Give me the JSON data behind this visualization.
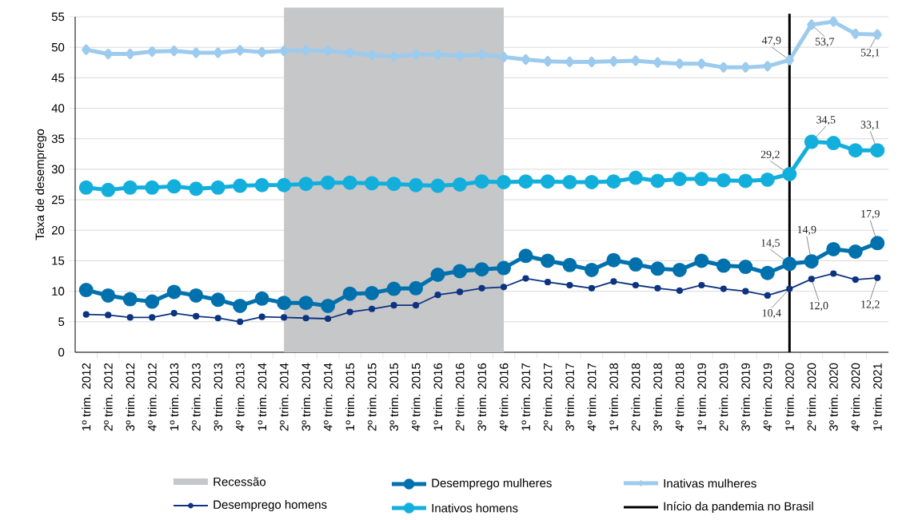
{
  "chart_data": {
    "type": "line",
    "ylabel": "Taxa de desemprego",
    "categories": [
      "1º trim. 2012",
      "2º trim. 2012",
      "3º trim. 2012",
      "4º trim. 2012",
      "1º trim. 2013",
      "2º trim. 2013",
      "3º trim. 2013",
      "4º trim. 2013",
      "1º trim. 2014",
      "2º trim. 2014",
      "3º trim. 2014",
      "4º trim. 2014",
      "1º trim. 2015",
      "2º trim. 2015",
      "3º trim. 2015",
      "4º trim. 2015",
      "1º trim. 2016",
      "2º trim. 2016",
      "3º trim. 2016",
      "4º trim. 2016",
      "1º trim. 2017",
      "2º trim. 2017",
      "3º trim. 2017",
      "4º trim. 2017",
      "1º trim. 2018",
      "2º trim. 2018",
      "3º trim. 2018",
      "4º trim. 2018",
      "1º trim. 2019",
      "2º trim. 2019",
      "3º trim. 2019",
      "4º trim. 2019",
      "1º trim. 2020",
      "2º trim. 2020",
      "3º trim. 2020",
      "4º trim. 2020",
      "1º trim. 2021"
    ],
    "series": [
      {
        "name": "Desemprego homens",
        "color": "#0d3480",
        "marker": "circle",
        "values": [
          6.2,
          6.1,
          5.7,
          5.7,
          6.4,
          5.9,
          5.6,
          5.0,
          5.8,
          5.7,
          5.6,
          5.5,
          6.6,
          7.1,
          7.7,
          7.7,
          9.4,
          9.9,
          10.5,
          10.7,
          12.1,
          11.5,
          11.0,
          10.5,
          11.6,
          11.0,
          10.5,
          10.1,
          11.0,
          10.4,
          10.0,
          9.3,
          10.4,
          12.0,
          12.9,
          11.9,
          12.2
        ]
      },
      {
        "name": "Desemprego mulheres",
        "color": "#0071ad",
        "marker": "circle",
        "values": [
          10.2,
          9.3,
          8.7,
          8.3,
          9.9,
          9.3,
          8.6,
          7.6,
          8.8,
          8.1,
          8.1,
          7.6,
          9.6,
          9.7,
          10.4,
          10.5,
          12.7,
          13.3,
          13.6,
          13.8,
          15.8,
          15.0,
          14.3,
          13.5,
          15.1,
          14.4,
          13.7,
          13.5,
          15.0,
          14.2,
          14.0,
          13.0,
          14.5,
          14.9,
          16.9,
          16.5,
          17.9
        ]
      },
      {
        "name": "Inativos homens",
        "color": "#13afdc",
        "marker": "circle",
        "values": [
          27.0,
          26.6,
          27.0,
          27.0,
          27.2,
          26.8,
          27.0,
          27.3,
          27.4,
          27.4,
          27.6,
          27.8,
          27.8,
          27.7,
          27.6,
          27.4,
          27.3,
          27.5,
          28.0,
          27.9,
          28.0,
          28.0,
          27.9,
          27.9,
          28.0,
          28.6,
          28.1,
          28.4,
          28.4,
          28.2,
          28.1,
          28.3,
          29.2,
          34.5,
          34.3,
          33.1,
          33.1
        ]
      },
      {
        "name": "Inativas mulheres",
        "color": "#9ccbee",
        "marker": "diamond",
        "values": [
          49.6,
          48.9,
          48.9,
          49.3,
          49.4,
          49.1,
          49.1,
          49.5,
          49.2,
          49.4,
          49.5,
          49.4,
          49.1,
          48.7,
          48.5,
          48.8,
          48.8,
          48.6,
          48.8,
          48.4,
          48.0,
          47.7,
          47.6,
          47.6,
          47.7,
          47.8,
          47.5,
          47.3,
          47.3,
          46.7,
          46.7,
          46.9,
          47.9,
          53.7,
          54.2,
          52.2,
          52.1
        ]
      }
    ],
    "ylim": [
      0,
      55
    ],
    "yticks": [
      0,
      5,
      10,
      15,
      20,
      25,
      30,
      35,
      40,
      45,
      50,
      55
    ],
    "grid": "y",
    "legend": "bottom",
    "line_style": "solid",
    "bands": [
      {
        "axis": "x",
        "from": "2º trim. 2014",
        "to": "4º trim. 2016",
        "label": "Recessão",
        "color": "#c6c7c9"
      }
    ],
    "ref_lines": [
      {
        "axis": "x",
        "value": "1º trim. 2020",
        "label": "Início da pandemia no Brasil",
        "color": "#000000"
      }
    ],
    "annotations": [
      {
        "text": "47,9",
        "x": "1º trim. 2020",
        "y": 47.9
      },
      {
        "text": "53,7",
        "x": "2º trim. 2020",
        "y": 53.7
      },
      {
        "text": "52,1",
        "x": "1º trim. 2021",
        "y": 52.1
      },
      {
        "text": "29,2",
        "x": "1º trim. 2020",
        "y": 29.2
      },
      {
        "text": "34,5",
        "x": "2º trim. 2020",
        "y": 34.5
      },
      {
        "text": "33,1",
        "x": "1º trim. 2021",
        "y": 33.1
      },
      {
        "text": "14,5",
        "x": "1º trim. 2020",
        "y": 14.5
      },
      {
        "text": "14,9",
        "x": "2º trim. 2020",
        "y": 14.9
      },
      {
        "text": "17,9",
        "x": "1º trim. 2021",
        "y": 17.9
      },
      {
        "text": "10,4",
        "x": "1º trim. 2020",
        "y": 10.4
      },
      {
        "text": "12,0",
        "x": "2º trim. 2020",
        "y": 12.0
      },
      {
        "text": "12,2",
        "x": "1º trim. 2021",
        "y": 12.2
      }
    ]
  }
}
